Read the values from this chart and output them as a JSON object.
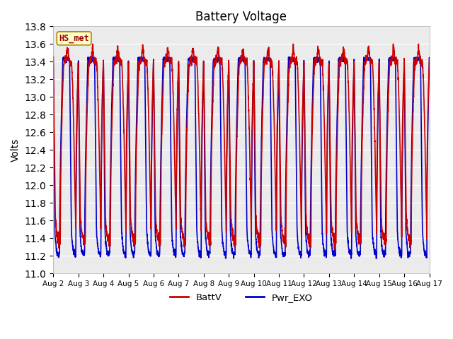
{
  "title": "Battery Voltage",
  "ylabel": "Volts",
  "ylim": [
    11.0,
    13.8
  ],
  "yticks": [
    11.0,
    11.2,
    11.4,
    11.6,
    11.8,
    12.0,
    12.2,
    12.4,
    12.6,
    12.8,
    13.0,
    13.2,
    13.4,
    13.6,
    13.8
  ],
  "xtick_labels": [
    "Aug 2",
    "Aug 3",
    "Aug 4",
    "Aug 5",
    "Aug 6",
    "Aug 7",
    "Aug 8",
    "Aug 9",
    "Aug 10",
    "Aug 11",
    "Aug 12",
    "Aug 13",
    "Aug 14",
    "Aug 15",
    "Aug 16",
    "Aug 17"
  ],
  "line_red_color": "#cc0000",
  "line_blue_color": "#0000cc",
  "line_width": 1.2,
  "bg_color": "#ebebeb",
  "label_box_color": "#ffffcc",
  "label_box_text": "HS_met",
  "legend_labels": [
    "BattV",
    "Pwr_EXO"
  ],
  "figsize": [
    6.4,
    4.8
  ],
  "dpi": 100,
  "n_days": 15,
  "pts_per_day": 200,
  "high_red": 13.42,
  "low_red": 11.38,
  "high_blue": 13.43,
  "low_blue": 11.22,
  "spike_red": 13.55
}
